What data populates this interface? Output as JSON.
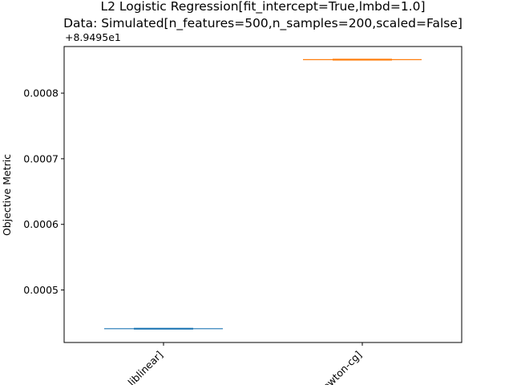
{
  "chart_data": {
    "type": "box",
    "title_line1": "L2 Logistic Regression[fit_intercept=True,lmbd=1.0]",
    "title_line2": "Data: Simulated[n_features=500,n_samples=200,scaled=False]",
    "ylabel": "Objective Metric",
    "y_offset_label": "+8.9495e1",
    "ylim": [
      0.00042,
      0.000871
    ],
    "yticks": [
      0.0005,
      0.0006,
      0.0007,
      0.0008
    ],
    "ytick_labels": [
      "0.0005",
      "0.0006",
      "0.0007",
      "0.0008"
    ],
    "categories": [
      "liblinear]",
      "newton-cg]"
    ],
    "series": [
      {
        "value": 0.000441,
        "color": "#1f77b4"
      },
      {
        "value": 0.000851,
        "color": "#ff7f0e"
      }
    ],
    "grid": false
  }
}
